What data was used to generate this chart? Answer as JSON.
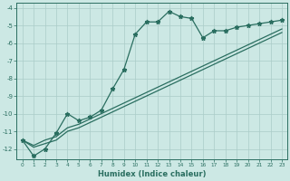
{
  "xlabel": "Humidex (Indice chaleur)",
  "bg_color": "#cce8e4",
  "grid_color": "#aaccc8",
  "line_color": "#2a6e60",
  "xlim": [
    -0.5,
    23.5
  ],
  "ylim": [
    -12.6,
    -3.7
  ],
  "xticks": [
    0,
    1,
    2,
    3,
    4,
    5,
    6,
    7,
    8,
    9,
    10,
    11,
    12,
    13,
    14,
    15,
    16,
    17,
    18,
    19,
    20,
    21,
    22,
    23
  ],
  "yticks": [
    -12,
    -11,
    -10,
    -9,
    -8,
    -7,
    -6,
    -5,
    -4
  ],
  "series_marked_x": [
    0,
    1,
    2,
    3,
    4,
    5,
    6,
    7,
    8,
    9,
    10,
    11,
    12,
    13,
    14,
    15,
    16,
    17,
    18,
    19,
    20,
    21,
    22,
    23
  ],
  "series_marked_y": [
    -11.5,
    -12.4,
    -12.0,
    -11.1,
    -10.0,
    -10.4,
    -10.2,
    -9.8,
    -8.6,
    -7.5,
    -5.5,
    -4.8,
    -4.8,
    -4.2,
    -4.5,
    -4.6,
    -5.7,
    -5.3,
    -5.3,
    -5.1,
    -5.0,
    -4.9,
    -4.8,
    -4.7
  ],
  "series_line1_x": [
    0,
    1,
    2,
    3,
    4,
    5,
    6,
    7,
    8,
    9,
    10,
    11,
    12,
    13,
    14,
    15,
    16,
    17,
    18,
    19,
    20,
    21,
    22,
    23
  ],
  "series_line1_y": [
    -11.5,
    -11.8,
    -11.5,
    -11.3,
    -10.8,
    -10.6,
    -10.3,
    -10.0,
    -9.7,
    -9.4,
    -9.1,
    -8.8,
    -8.5,
    -8.2,
    -7.9,
    -7.6,
    -7.3,
    -7.0,
    -6.7,
    -6.4,
    -6.1,
    -5.8,
    -5.5,
    -5.2
  ],
  "series_line2_x": [
    0,
    1,
    2,
    3,
    4,
    5,
    6,
    7,
    8,
    9,
    10,
    11,
    12,
    13,
    14,
    15,
    16,
    17,
    18,
    19,
    20,
    21,
    22,
    23
  ],
  "series_line2_y": [
    -11.5,
    -11.9,
    -11.7,
    -11.5,
    -11.0,
    -10.8,
    -10.5,
    -10.2,
    -9.9,
    -9.6,
    -9.3,
    -9.0,
    -8.7,
    -8.4,
    -8.1,
    -7.8,
    -7.5,
    -7.2,
    -6.9,
    -6.6,
    -6.3,
    -6.0,
    -5.7,
    -5.4
  ]
}
